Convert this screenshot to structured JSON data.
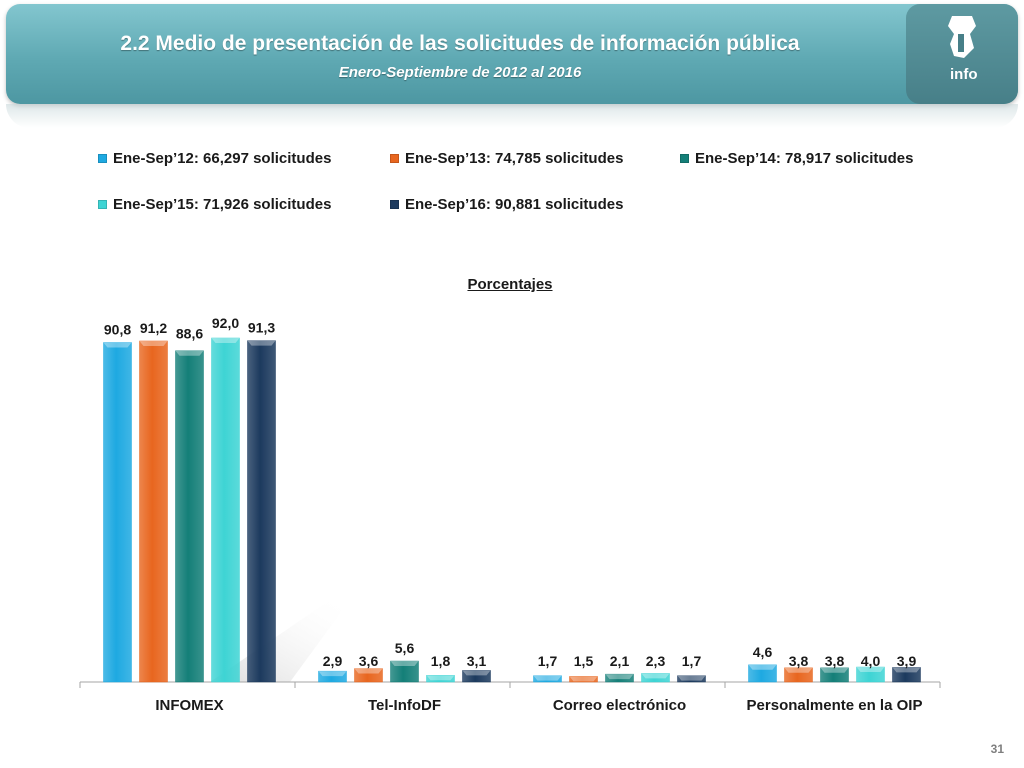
{
  "slide": {
    "title": "2.2 Medio de presentación de las solicitudes de información pública",
    "subtitle": "Enero-Septiembre de 2012 al 2016",
    "logo_text": "info",
    "page_number": "31"
  },
  "colors": {
    "header": "#5fa9b3",
    "series": [
      "#1ea9e1",
      "#e8661f",
      "#147f78",
      "#3ed4d4",
      "#1c3a5e"
    ]
  },
  "chart_data": {
    "type": "bar",
    "title": "Porcentajes",
    "categories": [
      "INFOMEX",
      "Tel-InfoDF",
      "Correo electrónico",
      "Personalmente en la OIP"
    ],
    "series": [
      {
        "name": "Ene-Sep’12: 66,297 solicitudes",
        "values": [
          90.8,
          2.9,
          1.7,
          4.6
        ],
        "labels": [
          "90,8",
          "2,9",
          "1,7",
          "4,6"
        ]
      },
      {
        "name": "Ene-Sep’13: 74,785 solicitudes",
        "values": [
          91.2,
          3.6,
          1.5,
          3.8
        ],
        "labels": [
          "91,2",
          "3,6",
          "1,5",
          "3,8"
        ]
      },
      {
        "name": "Ene-Sep’14: 78,917 solicitudes",
        "values": [
          88.6,
          5.6,
          2.1,
          3.8
        ],
        "labels": [
          "88,6",
          "5,6",
          "2,1",
          "3,8"
        ]
      },
      {
        "name": "Ene-Sep’15: 71,926 solicitudes",
        "values": [
          92.0,
          1.8,
          2.3,
          4.0
        ],
        "labels": [
          "92,0",
          "1,8",
          "2,3",
          "4,0"
        ]
      },
      {
        "name": "Ene-Sep’16: 90,881 solicitudes",
        "values": [
          91.3,
          3.1,
          1.7,
          3.9
        ],
        "labels": [
          "91,3",
          "3,1",
          "1,7",
          "3,9"
        ]
      }
    ],
    "ylim": [
      0,
      100
    ],
    "grid": false,
    "legend_position": "top"
  }
}
